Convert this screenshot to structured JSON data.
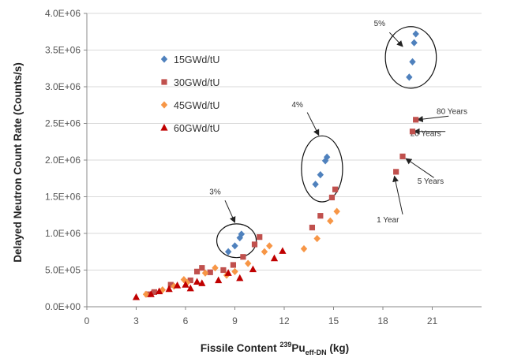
{
  "chart_data": {
    "type": "scatter",
    "xlabel": {
      "main": "Fissile Content ",
      "sup": "239",
      "base": "Pu",
      "sub": "eff-DN",
      "unit": " (kg)"
    },
    "ylabel": "Delayed Neutron Count Rate (Counts/s)",
    "xlim": [
      0,
      24
    ],
    "ylim": [
      0,
      4000000
    ],
    "x_ticks": [
      0,
      3,
      6,
      9,
      12,
      15,
      18,
      21
    ],
    "x_tick_labels": [
      "0",
      "3",
      "6",
      "9",
      "12",
      "15",
      "18",
      "21"
    ],
    "y_ticks": [
      0,
      500000,
      1000000,
      1500000,
      2000000,
      2500000,
      3000000,
      3500000,
      4000000
    ],
    "y_tick_labels": [
      "0.0E+00",
      "5.0E+05",
      "1.0E+06",
      "1.5E+06",
      "2.0E+06",
      "2.5E+06",
      "3.0E+06",
      "3.5E+06",
      "4.0E+06"
    ],
    "grid": "horizontal",
    "legend_position": "upper-left",
    "series": [
      {
        "name": "15GWd/tU",
        "marker": "diamond",
        "color": "#4F81BD",
        "points": [
          [
            8.6,
            750000
          ],
          [
            9.0,
            830000
          ],
          [
            9.3,
            940000
          ],
          [
            9.4,
            990000
          ],
          [
            13.9,
            1670000
          ],
          [
            14.2,
            1800000
          ],
          [
            14.5,
            1990000
          ],
          [
            14.6,
            2040000
          ],
          [
            19.6,
            3130000
          ],
          [
            19.8,
            3340000
          ],
          [
            19.9,
            3600000
          ],
          [
            20.0,
            3720000
          ]
        ]
      },
      {
        "name": "30GWd/tU",
        "marker": "square",
        "color": "#C0504D",
        "points": [
          [
            3.7,
            170000
          ],
          [
            4.1,
            200000
          ],
          [
            5.1,
            300000
          ],
          [
            6.3,
            360000
          ],
          [
            6.7,
            480000
          ],
          [
            7.0,
            530000
          ],
          [
            7.5,
            470000
          ],
          [
            8.3,
            500000
          ],
          [
            8.9,
            570000
          ],
          [
            9.5,
            680000
          ],
          [
            10.2,
            850000
          ],
          [
            10.5,
            950000
          ],
          [
            13.7,
            1080000
          ],
          [
            14.2,
            1240000
          ],
          [
            14.9,
            1490000
          ],
          [
            15.1,
            1600000
          ],
          [
            18.8,
            1840000
          ],
          [
            19.2,
            2050000
          ],
          [
            19.8,
            2390000
          ],
          [
            20.0,
            2550000
          ]
        ]
      },
      {
        "name": "45GWd/tU",
        "marker": "diamond",
        "color": "#F79646",
        "points": [
          [
            3.6,
            170000
          ],
          [
            4.6,
            230000
          ],
          [
            5.3,
            280000
          ],
          [
            5.9,
            370000
          ],
          [
            6.1,
            330000
          ],
          [
            7.2,
            460000
          ],
          [
            7.8,
            530000
          ],
          [
            8.5,
            430000
          ],
          [
            9.0,
            480000
          ],
          [
            9.8,
            590000
          ],
          [
            10.8,
            750000
          ],
          [
            11.1,
            830000
          ],
          [
            13.2,
            790000
          ],
          [
            14.0,
            930000
          ],
          [
            14.8,
            1170000
          ],
          [
            15.2,
            1300000
          ]
        ]
      },
      {
        "name": "60GWd/tU",
        "marker": "triangle",
        "color": "#C00000",
        "points": [
          [
            3.0,
            130000
          ],
          [
            3.9,
            170000
          ],
          [
            4.4,
            210000
          ],
          [
            5.0,
            240000
          ],
          [
            5.5,
            290000
          ],
          [
            6.0,
            300000
          ],
          [
            6.3,
            250000
          ],
          [
            6.7,
            340000
          ],
          [
            7.0,
            320000
          ],
          [
            8.0,
            360000
          ],
          [
            8.6,
            460000
          ],
          [
            9.3,
            390000
          ],
          [
            10.1,
            510000
          ],
          [
            11.4,
            660000
          ],
          [
            11.9,
            760000
          ]
        ]
      }
    ],
    "annotations": [
      {
        "text": "3%",
        "kind": "circle-group",
        "cx": 9.1,
        "cy": 900000,
        "rx": 1.2,
        "ry": 230000,
        "label_x": 7.8,
        "label_y": 1530000,
        "arrow_from": [
          8.4,
          1450000
        ],
        "arrow_to": [
          9.0,
          1150000
        ]
      },
      {
        "text": "4%",
        "kind": "circle-group",
        "cx": 14.3,
        "cy": 1880000,
        "rx": 1.25,
        "ry": 450000,
        "label_x": 12.8,
        "label_y": 2720000,
        "arrow_from": [
          13.4,
          2650000
        ],
        "arrow_to": [
          14.1,
          2340000
        ]
      },
      {
        "text": "5%",
        "kind": "circle-group",
        "cx": 19.7,
        "cy": 3400000,
        "rx": 1.55,
        "ry": 420000,
        "label_x": 17.8,
        "label_y": 3830000,
        "arrow_from": [
          18.4,
          3740000
        ],
        "arrow_to": [
          19.2,
          3550000
        ]
      },
      {
        "text": "80 Years",
        "kind": "callout",
        "label_x": 22.2,
        "label_y": 2630000,
        "arrow_from": [
          22.0,
          2600000
        ],
        "arrow_to": [
          20.1,
          2550000
        ]
      },
      {
        "text": "20 Years",
        "kind": "callout",
        "label_x": 20.6,
        "label_y": 2330000,
        "arrow_from": [
          21.8,
          2390000
        ],
        "arrow_to": [
          19.9,
          2390000
        ]
      },
      {
        "text": "5 Years",
        "kind": "callout",
        "label_x": 20.9,
        "label_y": 1680000,
        "arrow_from": [
          21.1,
          1760000
        ],
        "arrow_to": [
          19.4,
          2020000
        ]
      },
      {
        "text": "1 Year",
        "kind": "callout",
        "label_x": 18.3,
        "label_y": 1150000,
        "arrow_from": [
          19.2,
          1260000
        ],
        "arrow_to": [
          18.7,
          1780000
        ]
      }
    ]
  }
}
